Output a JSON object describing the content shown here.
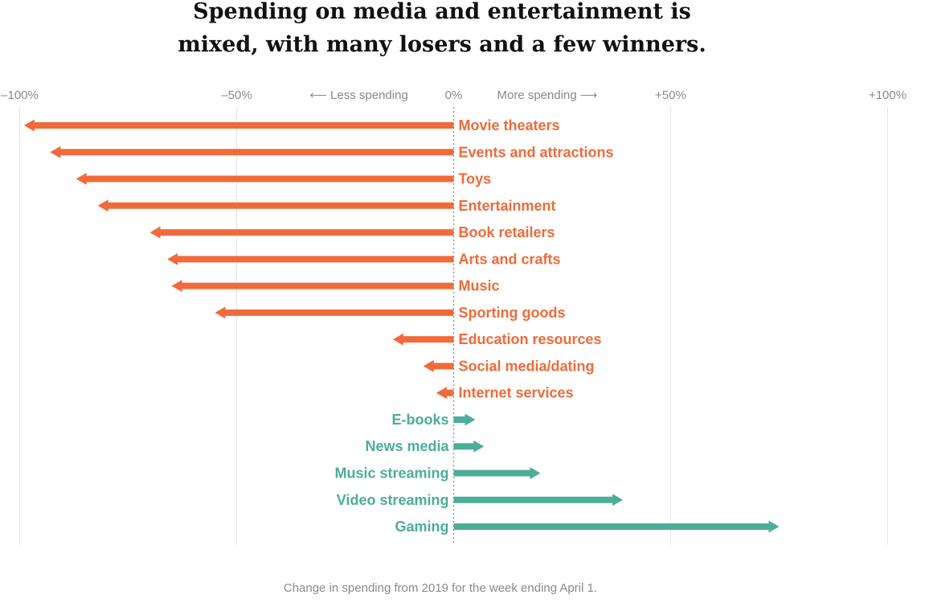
{
  "title_lines": [
    "Spending on media and entertainment is",
    "mixed, with many losers and a few winners."
  ],
  "caption": "Change in spending from 2019 for the week ending April 1.",
  "colors": {
    "decrease": "#f06a3a",
    "increase": "#4cae97",
    "grid": "#e6e6e6",
    "zero_line": "#999999"
  },
  "chart_data": {
    "type": "bar",
    "orientation": "horizontal",
    "x_unit": "percent change",
    "xlim": [
      -100,
      100
    ],
    "x_ticks": [
      {
        "value": -100,
        "label": "–100%"
      },
      {
        "value": -50,
        "label": "–50%"
      },
      {
        "value": 0,
        "label": "0%"
      },
      {
        "value": 50,
        "label": "+50%"
      },
      {
        "value": 100,
        "label": "+100%"
      }
    ],
    "direction_labels": {
      "left": "⟵ Less spending",
      "right": "More spending ⟶"
    },
    "grid": true,
    "categories": [
      "Movie theaters",
      "Events and attractions",
      "Toys",
      "Entertainment",
      "Book retailers",
      "Arts and crafts",
      "Music",
      "Sporting goods",
      "Education resources",
      "Social media/dating",
      "Internet services",
      "E-books",
      "News media",
      "Music streaming",
      "Video streaming",
      "Gaming"
    ],
    "values": [
      -99,
      -93,
      -87,
      -82,
      -70,
      -66,
      -65,
      -55,
      -14,
      -7,
      -4,
      5,
      7,
      20,
      39,
      75
    ]
  }
}
